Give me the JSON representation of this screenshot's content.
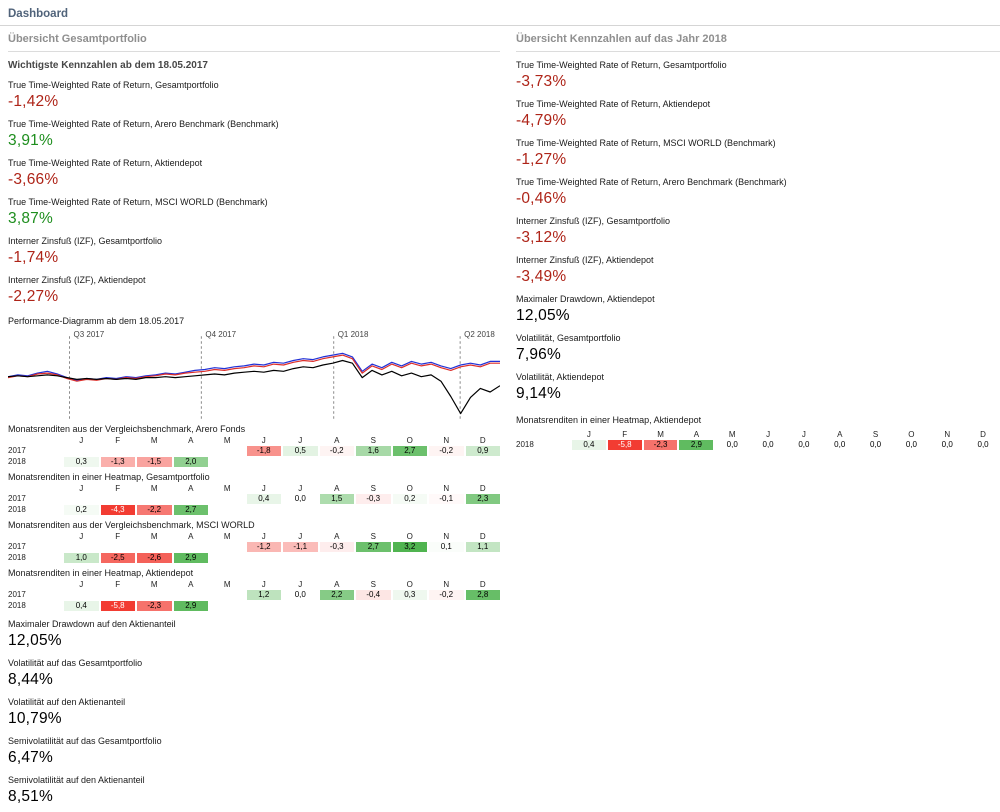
{
  "page": {
    "title": "Dashboard"
  },
  "colors": {
    "negative": "#ae2418",
    "positive": "#1e8e1e",
    "neutral": "#000000",
    "heat_positive_rgb": "80,180,80",
    "heat_negative_rgb": "242,60,50"
  },
  "left": {
    "section_title": "Übersicht Gesamtportfolio",
    "subsection_title": "Wichtigste Kennzahlen ab dem 18.05.2017",
    "metrics": [
      {
        "label": "True Time-Weighted Rate of Return, Gesamtportfolio",
        "value": "-1,42%",
        "color": "negative"
      },
      {
        "label": "True Time-Weighted Rate of Return, Arero Benchmark (Benchmark)",
        "value": "3,91%",
        "color": "positive"
      },
      {
        "label": "True Time-Weighted Rate of Return, Aktiendepot",
        "value": "-3,66%",
        "color": "negative"
      },
      {
        "label": "True Time-Weighted Rate of Return, MSCI WORLD (Benchmark)",
        "value": "3,87%",
        "color": "positive"
      },
      {
        "label": "Interner Zinsfuß (IZF), Gesamtportfolio",
        "value": "-1,74%",
        "color": "negative"
      },
      {
        "label": "Interner Zinsfuß (IZF), Aktiendepot",
        "value": "-2,27%",
        "color": "negative"
      }
    ],
    "chart": {
      "label": "Performance-Diagramm ab dem 18.05.2017",
      "x_step": 2,
      "quarters": [
        {
          "label": "Q3 2017",
          "x": 12.5
        },
        {
          "label": "Q4 2017",
          "x": 39.3
        },
        {
          "label": "Q1 2018",
          "x": 66.2
        },
        {
          "label": "Q2 2018",
          "x": 91.9
        }
      ],
      "series": [
        {
          "id": "series-blue",
          "color": "#2231d6",
          "y": [
            53,
            51,
            52,
            49,
            47,
            50,
            54,
            57,
            55,
            56,
            54,
            55,
            53,
            54,
            52,
            51,
            49,
            50,
            48,
            46,
            45,
            43,
            44,
            42,
            41,
            39,
            40,
            37,
            38,
            35,
            33,
            34,
            31,
            29,
            27,
            31,
            47,
            39,
            43,
            37,
            41,
            36,
            39,
            37,
            41,
            44,
            40,
            38,
            40,
            36,
            36
          ]
        },
        {
          "id": "series-red",
          "color": "#dd2f2a",
          "y": [
            54,
            52,
            53,
            50,
            49,
            51,
            55,
            58,
            56,
            57,
            55,
            56,
            54,
            55,
            53,
            52,
            50,
            51,
            49,
            48,
            47,
            45,
            46,
            44,
            43,
            41,
            42,
            39,
            40,
            37,
            35,
            36,
            33,
            31,
            29,
            33,
            49,
            41,
            45,
            39,
            43,
            38,
            41,
            39,
            43,
            46,
            42,
            40,
            42,
            38,
            38
          ]
        },
        {
          "id": "series-black",
          "color": "#000000",
          "y": [
            53,
            52,
            53,
            52,
            51,
            52,
            54,
            56,
            55,
            56,
            55,
            56,
            55,
            56,
            54,
            54,
            53,
            54,
            53,
            52,
            51,
            50,
            51,
            49,
            48,
            47,
            48,
            46,
            47,
            44,
            42,
            43,
            40,
            38,
            35,
            38,
            54,
            46,
            51,
            47,
            52,
            49,
            53,
            51,
            58,
            75,
            94,
            76,
            66,
            70,
            63
          ]
        }
      ]
    },
    "heatmaps": [
      {
        "title": "Monatsrenditen aus der Vergleichsbenchmark, Arero Fonds",
        "months": [
          "J",
          "F",
          "M",
          "A",
          "M",
          "J",
          "J",
          "A",
          "S",
          "O",
          "N",
          "D"
        ],
        "rows": [
          {
            "year": "2017",
            "cells": [
              null,
              null,
              null,
              null,
              null,
              -1.8,
              0.5,
              -0.2,
              1.6,
              2.7,
              -0.2,
              0.9
            ]
          },
          {
            "year": "2018",
            "cells": [
              0.3,
              -1.3,
              -1.5,
              2.0,
              null,
              null,
              null,
              null,
              null,
              null,
              null,
              null
            ]
          }
        ]
      },
      {
        "title": "Monatsrenditen in einer Heatmap, Gesamtportfolio",
        "months": [
          "J",
          "F",
          "M",
          "A",
          "M",
          "J",
          "J",
          "A",
          "S",
          "O",
          "N",
          "D"
        ],
        "rows": [
          {
            "year": "2017",
            "cells": [
              null,
              null,
              null,
              null,
              null,
              0.4,
              0.0,
              1.5,
              -0.3,
              0.2,
              -0.1,
              2.3
            ]
          },
          {
            "year": "2018",
            "cells": [
              0.2,
              -4.3,
              -2.2,
              2.7,
              null,
              null,
              null,
              null,
              null,
              null,
              null,
              null
            ]
          }
        ]
      },
      {
        "title": "Monatsrenditen aus der Vergleichsbenchmark, MSCI WORLD",
        "months": [
          "J",
          "F",
          "M",
          "A",
          "M",
          "J",
          "J",
          "A",
          "S",
          "O",
          "N",
          "D"
        ],
        "rows": [
          {
            "year": "2017",
            "cells": [
              null,
              null,
              null,
              null,
              null,
              -1.2,
              -1.1,
              -0.3,
              2.7,
              3.2,
              0.1,
              1.1
            ]
          },
          {
            "year": "2018",
            "cells": [
              1.0,
              -2.5,
              -2.6,
              2.9,
              null,
              null,
              null,
              null,
              null,
              null,
              null,
              null
            ]
          }
        ]
      },
      {
        "title": "Monatsrenditen in einer Heatmap, Aktiendepot",
        "months": [
          "J",
          "F",
          "M",
          "A",
          "M",
          "J",
          "J",
          "A",
          "S",
          "O",
          "N",
          "D"
        ],
        "rows": [
          {
            "year": "2017",
            "cells": [
              null,
              null,
              null,
              null,
              null,
              1.2,
              0.0,
              2.2,
              -0.4,
              0.3,
              -0.2,
              2.8
            ]
          },
          {
            "year": "2018",
            "cells": [
              0.4,
              -5.8,
              -2.3,
              2.9,
              null,
              null,
              null,
              null,
              null,
              null,
              null,
              null
            ]
          }
        ]
      }
    ],
    "bottom_metrics": [
      {
        "label": "Maximaler Drawdown auf den Aktienanteil",
        "value": "12,05%",
        "color": "neutral"
      },
      {
        "label": "Volatilität auf das Gesamtportfolio",
        "value": "8,44%",
        "color": "neutral"
      },
      {
        "label": "Volatilität auf den Aktienanteil",
        "value": "10,79%",
        "color": "neutral"
      },
      {
        "label": "Semivolatilität auf das Gesamtportfolio",
        "value": "6,47%",
        "color": "neutral"
      },
      {
        "label": "Semivolatilität auf den Aktienanteil",
        "value": "8,51%",
        "color": "neutral"
      }
    ]
  },
  "right": {
    "section_title": "Übersicht Kennzahlen auf das Jahr 2018",
    "metrics": [
      {
        "label": "True Time-Weighted Rate of Return, Gesamtportfolio",
        "value": "-3,73%",
        "color": "negative"
      },
      {
        "label": "True Time-Weighted Rate of Return, Aktiendepot",
        "value": "-4,79%",
        "color": "negative"
      },
      {
        "label": "True Time-Weighted Rate of Return, MSCI WORLD (Benchmark)",
        "value": "-1,27%",
        "color": "negative"
      },
      {
        "label": "True Time-Weighted Rate of Return, Arero Benchmark (Benchmark)",
        "value": "-0,46%",
        "color": "negative"
      },
      {
        "label": "Interner Zinsfuß (IZF), Gesamtportfolio",
        "value": "-3,12%",
        "color": "negative"
      },
      {
        "label": "Interner Zinsfuß (IZF), Aktiendepot",
        "value": "-3,49%",
        "color": "negative"
      },
      {
        "label": "Maximaler Drawdown, Aktiendepot",
        "value": "12,05%",
        "color": "neutral"
      },
      {
        "label": "Volatilität, Gesamtportfolio",
        "value": "7,96%",
        "color": "neutral"
      },
      {
        "label": "Volatilität, Aktiendepot",
        "value": "9,14%",
        "color": "neutral"
      }
    ],
    "heatmap": {
      "title": "Monatsrenditen in einer Heatmap, Aktiendepot",
      "months": [
        "J",
        "F",
        "M",
        "A",
        "M",
        "J",
        "J",
        "A",
        "S",
        "O",
        "N",
        "D"
      ],
      "rows": [
        {
          "year": "2018",
          "cells": [
            0.4,
            -5.8,
            -2.3,
            2.9,
            0.0,
            0.0,
            0.0,
            0.0,
            0.0,
            0.0,
            0.0,
            0.0
          ]
        }
      ]
    }
  }
}
